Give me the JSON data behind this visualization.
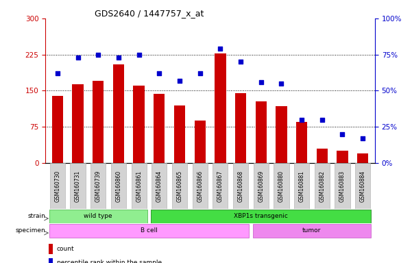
{
  "title": "GDS2640 / 1447757_x_at",
  "samples": [
    "GSM160730",
    "GSM160731",
    "GSM160739",
    "GSM160860",
    "GSM160861",
    "GSM160864",
    "GSM160865",
    "GSM160866",
    "GSM160867",
    "GSM160868",
    "GSM160869",
    "GSM160880",
    "GSM160881",
    "GSM160882",
    "GSM160883",
    "GSM160884"
  ],
  "counts": [
    140,
    163,
    170,
    205,
    160,
    143,
    120,
    88,
    228,
    145,
    128,
    118,
    85,
    30,
    25,
    20
  ],
  "percentiles": [
    62,
    73,
    75,
    73,
    75,
    62,
    57,
    62,
    79,
    70,
    56,
    55,
    30,
    30,
    20,
    17
  ],
  "bar_color": "#cc0000",
  "dot_color": "#0000cc",
  "left_ylim": [
    0,
    300
  ],
  "right_ylim": [
    0,
    100
  ],
  "left_yticks": [
    0,
    75,
    150,
    225,
    300
  ],
  "right_yticks": [
    0,
    25,
    50,
    75,
    100
  ],
  "right_yticklabels": [
    "0%",
    "25%",
    "50%",
    "75%",
    "100%"
  ],
  "hlines": [
    75,
    150,
    225
  ],
  "strain_groups": [
    {
      "label": "wild type",
      "start": 0,
      "end": 4,
      "color": "#90ee90",
      "edge": "#55bb55"
    },
    {
      "label": "XBP1s transgenic",
      "start": 5,
      "end": 15,
      "color": "#44dd44",
      "edge": "#228822"
    }
  ],
  "specimen_groups": [
    {
      "label": "B cell",
      "start": 0,
      "end": 9,
      "color": "#ff99ff",
      "edge": "#cc66cc"
    },
    {
      "label": "tumor",
      "start": 10,
      "end": 15,
      "color": "#ee88ee",
      "edge": "#cc66cc"
    }
  ],
  "legend_items": [
    {
      "label": "count",
      "color": "#cc0000"
    },
    {
      "label": "percentile rank within the sample",
      "color": "#0000cc"
    }
  ]
}
